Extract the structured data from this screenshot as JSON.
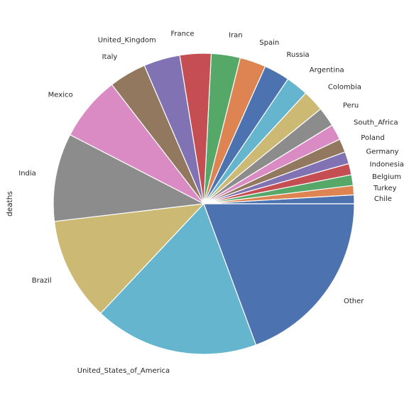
{
  "chart_data": {
    "type": "pie",
    "ylabel": "deaths",
    "slices": [
      {
        "label": "Chile",
        "value": 0.95,
        "color": "#4C72B0"
      },
      {
        "label": "Turkey",
        "value": 1.0,
        "color": "#DD8452"
      },
      {
        "label": "Belgium",
        "value": 1.15,
        "color": "#55A868"
      },
      {
        "label": "Indonesia",
        "value": 1.2,
        "color": "#C44E52"
      },
      {
        "label": "Germany",
        "value": 1.3,
        "color": "#8172B3"
      },
      {
        "label": "Poland",
        "value": 1.45,
        "color": "#937860"
      },
      {
        "label": "South_Africa",
        "value": 1.7,
        "color": "#DA8BC3"
      },
      {
        "label": "Peru",
        "value": 2.1,
        "color": "#8C8C8C"
      },
      {
        "label": "Colombia",
        "value": 2.3,
        "color": "#CCB974"
      },
      {
        "label": "Argentina",
        "value": 2.4,
        "color": "#64B5CD"
      },
      {
        "label": "Russia",
        "value": 2.75,
        "color": "#4C72B0"
      },
      {
        "label": "Spain",
        "value": 2.8,
        "color": "#DD8452"
      },
      {
        "label": "Iran",
        "value": 3.1,
        "color": "#55A868"
      },
      {
        "label": "France",
        "value": 3.35,
        "color": "#C44E52"
      },
      {
        "label": "United_Kingdom",
        "value": 3.9,
        "color": "#8172B3"
      },
      {
        "label": "Italy",
        "value": 4.0,
        "color": "#937860"
      },
      {
        "label": "Mexico",
        "value": 6.95,
        "color": "#DA8BC3"
      },
      {
        "label": "India",
        "value": 9.45,
        "color": "#8C8C8C"
      },
      {
        "label": "Brazil",
        "value": 11.1,
        "color": "#CCB974"
      },
      {
        "label": "United_States_of_America",
        "value": 17.65,
        "color": "#64B5CD"
      },
      {
        "label": "Other",
        "value": 19.35,
        "color": "#4C72B0"
      }
    ]
  }
}
